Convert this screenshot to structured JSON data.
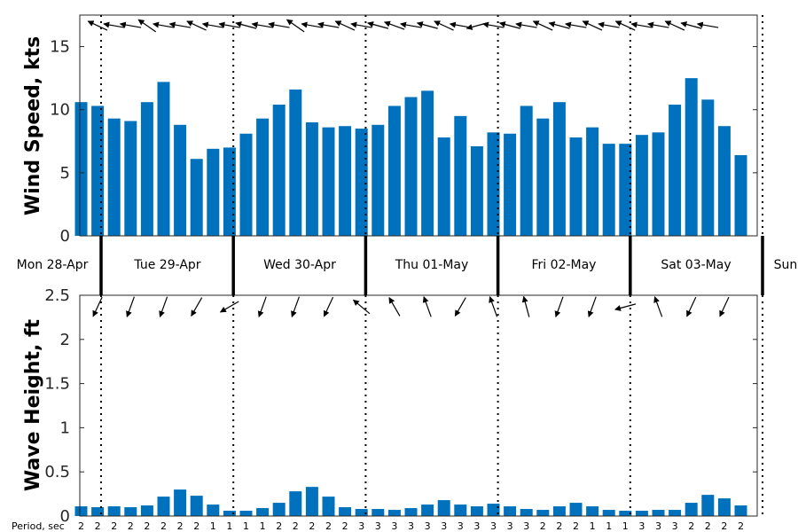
{
  "chart_data": [
    {
      "type": "bar",
      "ylabel": "Wind Speed, kts",
      "ylim": [
        0,
        17.5
      ],
      "yticks": [
        "0",
        "5",
        "10",
        "15"
      ],
      "bar_color": "#0072BD",
      "grid": false,
      "values": [
        10.6,
        10.3,
        9.3,
        9.1,
        10.6,
        12.2,
        8.8,
        6.1,
        6.9,
        7.0,
        8.1,
        9.3,
        10.4,
        11.6,
        9.0,
        8.6,
        8.7,
        8.5,
        8.8,
        10.3,
        11.0,
        11.5,
        7.8,
        9.5,
        7.1,
        8.2,
        8.1,
        10.3,
        9.3,
        10.6,
        7.8,
        8.6,
        7.3,
        7.3,
        8.0,
        8.2,
        10.4,
        12.5,
        10.8,
        8.7,
        6.4
      ],
      "wind_direction_arrows_deg": [
        115,
        100,
        100,
        125,
        100,
        100,
        115,
        100,
        100,
        105,
        100,
        100,
        125,
        100,
        100,
        115,
        100,
        105,
        110,
        100,
        105,
        115,
        100,
        75,
        100,
        105,
        100,
        115,
        105,
        100,
        115,
        100,
        115,
        100,
        100,
        115,
        105,
        100
      ]
    },
    {
      "type": "bar",
      "ylabel": "Wave Height, ft",
      "ylim": [
        0,
        2.5
      ],
      "yticks": [
        "0",
        "0.5",
        "1",
        "1.5",
        "2",
        "2.5"
      ],
      "bar_color": "#0072BD",
      "grid": false,
      "values": [
        0.11,
        0.1,
        0.11,
        0.1,
        0.12,
        0.22,
        0.3,
        0.23,
        0.13,
        0.06,
        0.06,
        0.09,
        0.15,
        0.28,
        0.33,
        0.22,
        0.1,
        0.08,
        0.08,
        0.07,
        0.09,
        0.13,
        0.18,
        0.13,
        0.11,
        0.14,
        0.11,
        0.08,
        0.07,
        0.11,
        0.15,
        0.11,
        0.07,
        0.06,
        0.06,
        0.07,
        0.07,
        0.15,
        0.24,
        0.2,
        0.12
      ],
      "wave_direction_arrows_deg": [
        25,
        20,
        20,
        30,
        60,
        20,
        20,
        25,
        130,
        150,
        160,
        30,
        160,
        165,
        20,
        20,
        75,
        160,
        25,
        25
      ],
      "period_label": "Period, sec",
      "periods": [
        "2",
        "2",
        "2",
        "2",
        "2",
        "2",
        "2",
        "2",
        "1",
        "1",
        "1",
        "1",
        "2",
        "2",
        "2",
        "2",
        "2",
        "3",
        "3",
        "3",
        "3",
        "3",
        "3",
        "3",
        "3",
        "3",
        "3",
        "3",
        "2",
        "2",
        "2",
        "1",
        "1",
        "1",
        "3",
        "3",
        "3",
        "2",
        "2",
        "2",
        "2"
      ]
    }
  ],
  "days": [
    "Mon 28-Apr",
    "Tue 29-Apr",
    "Wed 30-Apr",
    "Thu 01-May",
    "Fri 02-May",
    "Sat 03-May",
    "Sun"
  ]
}
